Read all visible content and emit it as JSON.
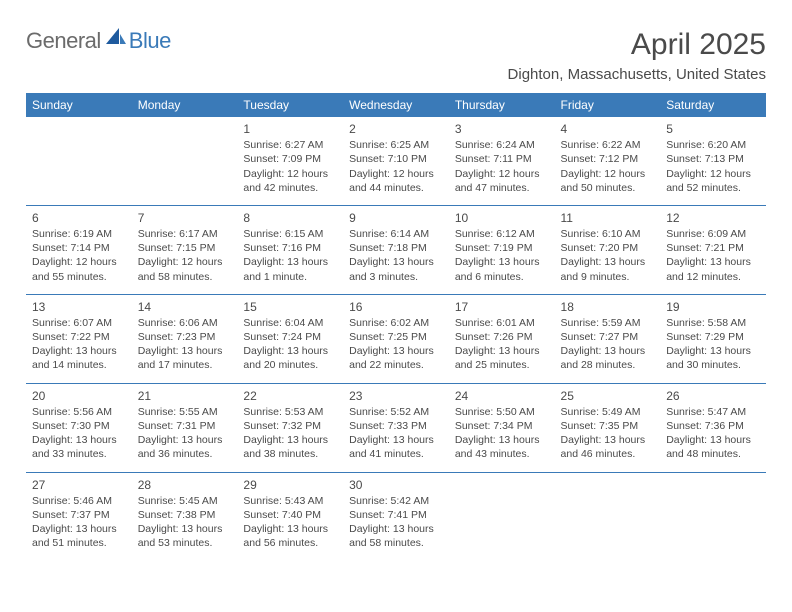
{
  "logo": {
    "general": "General",
    "blue": "Blue"
  },
  "title": "April 2025",
  "location": "Dighton, Massachusetts, United States",
  "colors": {
    "accent": "#3a7ab8",
    "text": "#4a4a4a",
    "bg": "#ffffff"
  },
  "days_of_week": [
    "Sunday",
    "Monday",
    "Tuesday",
    "Wednesday",
    "Thursday",
    "Friday",
    "Saturday"
  ],
  "weeks": [
    [
      null,
      null,
      {
        "n": "1",
        "sr": "6:27 AM",
        "ss": "7:09 PM",
        "dl": "12 hours and 42 minutes."
      },
      {
        "n": "2",
        "sr": "6:25 AM",
        "ss": "7:10 PM",
        "dl": "12 hours and 44 minutes."
      },
      {
        "n": "3",
        "sr": "6:24 AM",
        "ss": "7:11 PM",
        "dl": "12 hours and 47 minutes."
      },
      {
        "n": "4",
        "sr": "6:22 AM",
        "ss": "7:12 PM",
        "dl": "12 hours and 50 minutes."
      },
      {
        "n": "5",
        "sr": "6:20 AM",
        "ss": "7:13 PM",
        "dl": "12 hours and 52 minutes."
      }
    ],
    [
      {
        "n": "6",
        "sr": "6:19 AM",
        "ss": "7:14 PM",
        "dl": "12 hours and 55 minutes."
      },
      {
        "n": "7",
        "sr": "6:17 AM",
        "ss": "7:15 PM",
        "dl": "12 hours and 58 minutes."
      },
      {
        "n": "8",
        "sr": "6:15 AM",
        "ss": "7:16 PM",
        "dl": "13 hours and 1 minute."
      },
      {
        "n": "9",
        "sr": "6:14 AM",
        "ss": "7:18 PM",
        "dl": "13 hours and 3 minutes."
      },
      {
        "n": "10",
        "sr": "6:12 AM",
        "ss": "7:19 PM",
        "dl": "13 hours and 6 minutes."
      },
      {
        "n": "11",
        "sr": "6:10 AM",
        "ss": "7:20 PM",
        "dl": "13 hours and 9 minutes."
      },
      {
        "n": "12",
        "sr": "6:09 AM",
        "ss": "7:21 PM",
        "dl": "13 hours and 12 minutes."
      }
    ],
    [
      {
        "n": "13",
        "sr": "6:07 AM",
        "ss": "7:22 PM",
        "dl": "13 hours and 14 minutes."
      },
      {
        "n": "14",
        "sr": "6:06 AM",
        "ss": "7:23 PM",
        "dl": "13 hours and 17 minutes."
      },
      {
        "n": "15",
        "sr": "6:04 AM",
        "ss": "7:24 PM",
        "dl": "13 hours and 20 minutes."
      },
      {
        "n": "16",
        "sr": "6:02 AM",
        "ss": "7:25 PM",
        "dl": "13 hours and 22 minutes."
      },
      {
        "n": "17",
        "sr": "6:01 AM",
        "ss": "7:26 PM",
        "dl": "13 hours and 25 minutes."
      },
      {
        "n": "18",
        "sr": "5:59 AM",
        "ss": "7:27 PM",
        "dl": "13 hours and 28 minutes."
      },
      {
        "n": "19",
        "sr": "5:58 AM",
        "ss": "7:29 PM",
        "dl": "13 hours and 30 minutes."
      }
    ],
    [
      {
        "n": "20",
        "sr": "5:56 AM",
        "ss": "7:30 PM",
        "dl": "13 hours and 33 minutes."
      },
      {
        "n": "21",
        "sr": "5:55 AM",
        "ss": "7:31 PM",
        "dl": "13 hours and 36 minutes."
      },
      {
        "n": "22",
        "sr": "5:53 AM",
        "ss": "7:32 PM",
        "dl": "13 hours and 38 minutes."
      },
      {
        "n": "23",
        "sr": "5:52 AM",
        "ss": "7:33 PM",
        "dl": "13 hours and 41 minutes."
      },
      {
        "n": "24",
        "sr": "5:50 AM",
        "ss": "7:34 PM",
        "dl": "13 hours and 43 minutes."
      },
      {
        "n": "25",
        "sr": "5:49 AM",
        "ss": "7:35 PM",
        "dl": "13 hours and 46 minutes."
      },
      {
        "n": "26",
        "sr": "5:47 AM",
        "ss": "7:36 PM",
        "dl": "13 hours and 48 minutes."
      }
    ],
    [
      {
        "n": "27",
        "sr": "5:46 AM",
        "ss": "7:37 PM",
        "dl": "13 hours and 51 minutes."
      },
      {
        "n": "28",
        "sr": "5:45 AM",
        "ss": "7:38 PM",
        "dl": "13 hours and 53 minutes."
      },
      {
        "n": "29",
        "sr": "5:43 AM",
        "ss": "7:40 PM",
        "dl": "13 hours and 56 minutes."
      },
      {
        "n": "30",
        "sr": "5:42 AM",
        "ss": "7:41 PM",
        "dl": "13 hours and 58 minutes."
      },
      null,
      null,
      null
    ]
  ],
  "labels": {
    "sunrise": "Sunrise:",
    "sunset": "Sunset:",
    "daylight": "Daylight:"
  }
}
